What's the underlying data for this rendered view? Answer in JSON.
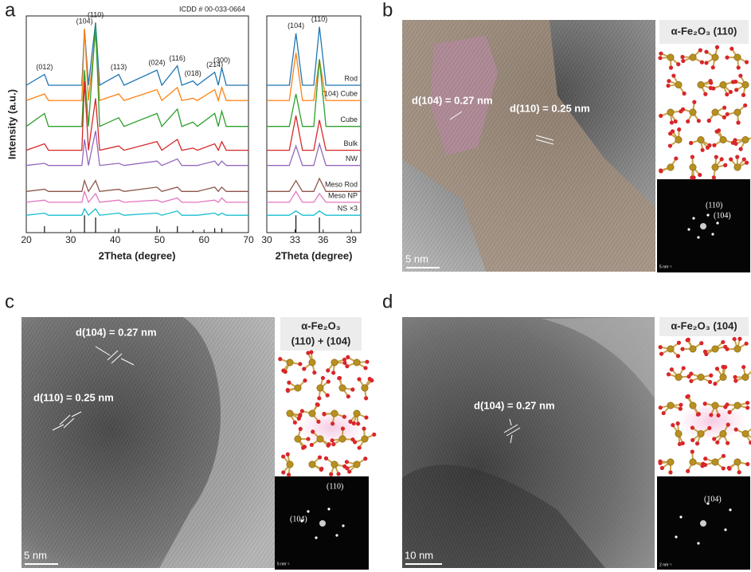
{
  "panel_labels": [
    "a",
    "b",
    "c",
    "d"
  ],
  "chart_data": [
    {
      "type": "line",
      "annotation": "ICDD # 00-033-0664",
      "xlabel": "2Theta (degree)",
      "ylabel": "Intensity (a.u.)",
      "xlim": [
        20,
        70
      ],
      "xticks": [
        20,
        30,
        40,
        50,
        60,
        70
      ],
      "ylim": [
        0,
        100
      ],
      "x": [
        20,
        24.1,
        25,
        32.5,
        33.1,
        34,
        35.6,
        36.5,
        40.8,
        42,
        49.4,
        50.5,
        54.0,
        55,
        57.5,
        58.5,
        62.4,
        63.2,
        64.0,
        65,
        70
      ],
      "series": [
        {
          "color": "#1f77b4",
          "values": [
            68,
            73,
            68,
            68,
            94,
            68,
            97,
            68,
            73,
            68,
            75,
            68,
            77,
            68,
            70,
            68,
            74,
            68,
            76,
            68,
            68
          ]
        },
        {
          "color": "#ff7f0e",
          "values": [
            61,
            64,
            61,
            61,
            94,
            61,
            92,
            61,
            64,
            61,
            66,
            61,
            67,
            61,
            62,
            61,
            66,
            61,
            67,
            61,
            61
          ]
        },
        {
          "color": "#2ca02c",
          "values": [
            49,
            55,
            49,
            49,
            75,
            49,
            96,
            49,
            53,
            49,
            55,
            49,
            57,
            49,
            51,
            49,
            55,
            49,
            56,
            49,
            49
          ]
        },
        {
          "color": "#d62728",
          "values": [
            38,
            41,
            38,
            38,
            70,
            38,
            62,
            38,
            40,
            38,
            42,
            38,
            43,
            38,
            39,
            38,
            41,
            38,
            42,
            38,
            38
          ]
        },
        {
          "color": "#9467bd",
          "values": [
            31,
            32,
            31,
            31,
            43,
            31,
            47,
            31,
            32,
            31,
            33,
            31,
            34,
            31,
            31,
            31,
            33,
            31,
            33,
            31,
            31
          ]
        },
        {
          "color": "#8c564b",
          "values": [
            19,
            20,
            19,
            19,
            24,
            19,
            24,
            19,
            20,
            19,
            21,
            19,
            21,
            19,
            19,
            19,
            21,
            19,
            21,
            19,
            19
          ]
        },
        {
          "color": "#e377c2",
          "values": [
            14,
            15,
            14,
            14,
            19,
            14,
            18,
            14,
            15,
            14,
            15,
            14,
            16,
            14,
            14,
            14,
            15,
            14,
            16,
            14,
            14
          ]
        },
        {
          "color": "#17becf",
          "values": [
            8,
            9,
            8,
            8,
            11,
            8,
            11,
            8,
            9,
            8,
            9,
            8,
            10,
            8,
            8,
            8,
            9,
            8,
            9,
            8,
            8
          ]
        }
      ],
      "peaks": [
        {
          "text": "(012)",
          "x": 24.1
        },
        {
          "text": "(104)",
          "x": 33.1
        },
        {
          "text": "(110)",
          "x": 35.6
        },
        {
          "text": "(113)",
          "x": 40.8
        },
        {
          "text": "(024)",
          "x": 49.4
        },
        {
          "text": "(116)",
          "x": 54.0
        },
        {
          "text": "(018)",
          "x": 57.5
        },
        {
          "text": "(214)",
          "x": 62.4
        },
        {
          "text": "(300)",
          "x": 64.0
        }
      ],
      "reference": {
        "x": [
          24.1,
          33.1,
          35.6,
          40.8,
          49.4,
          54.0,
          57.5,
          62.4,
          64.0
        ],
        "values": [
          3,
          8,
          7,
          2,
          3,
          3,
          1,
          2,
          2
        ]
      }
    },
    {
      "type": "line",
      "xlabel": "2Theta (degree)",
      "xlim": [
        30,
        40
      ],
      "xticks": [
        30,
        33,
        36,
        39
      ],
      "ylim": [
        0,
        100
      ],
      "x": [
        30,
        32.4,
        33.1,
        33.8,
        35.0,
        35.6,
        36.3,
        40
      ],
      "series": [
        {
          "name": "Rod",
          "color": "#1f77b4",
          "values": [
            68,
            68,
            92,
            68,
            68,
            95,
            68,
            68
          ]
        },
        {
          "name": "(104) Cube",
          "color": "#ff7f0e",
          "values": [
            61,
            61,
            83,
            61,
            61,
            80,
            61,
            61
          ]
        },
        {
          "name": "Cube",
          "color": "#2ca02c",
          "values": [
            49,
            49,
            64,
            49,
            49,
            80,
            49,
            49
          ]
        },
        {
          "name": "Bulk",
          "color": "#d62728",
          "values": [
            38,
            38,
            54,
            38,
            38,
            52,
            38,
            38
          ]
        },
        {
          "name": "NW",
          "color": "#9467bd",
          "values": [
            31,
            31,
            40,
            31,
            31,
            41,
            31,
            31
          ]
        },
        {
          "name": "Meso Rod",
          "color": "#8c564b",
          "values": [
            19,
            19,
            24,
            19,
            19,
            25,
            19,
            19
          ]
        },
        {
          "name": "Meso NP",
          "color": "#e377c2",
          "values": [
            14,
            14,
            19,
            14,
            14,
            18,
            14,
            14
          ]
        },
        {
          "name": "NS ×3",
          "color": "#17becf",
          "values": [
            8,
            8,
            10,
            8,
            8,
            10,
            8,
            8
          ]
        }
      ],
      "peaks": [
        {
          "text": "(104)",
          "x": 33.1
        },
        {
          "text": "(110)",
          "x": 35.6
        }
      ],
      "reference": {
        "x": [
          33.1,
          35.6
        ],
        "values": [
          8,
          7
        ]
      }
    }
  ],
  "b": {
    "phase": "α-Fe₂O₃ (110)",
    "fringes": [
      "d(104) = 0.27 nm",
      "d(110) = 0.25 nm"
    ],
    "scale_bar": "5 nm",
    "fft_spots": [
      "(110)",
      "(104)"
    ],
    "fft_scale": "5 nm⁻¹"
  },
  "c": {
    "phase": [
      "α-Fe₂O₃",
      "(110) + (104)"
    ],
    "fringes": [
      "d(104) = 0.27 nm",
      "d(110) = 0.25 nm"
    ],
    "scale_bar": "5 nm",
    "fft_spots": [
      "(110)",
      "(104)"
    ],
    "fft_scale": "5 nm⁻¹"
  },
  "d": {
    "phase": "α-Fe₂O₃ (104)",
    "fringes": [
      "d(104) = 0.27 nm"
    ],
    "scale_bar": "10 nm",
    "fft_spots": [
      "(104)"
    ],
    "fft_scale": "2 nm⁻¹"
  }
}
